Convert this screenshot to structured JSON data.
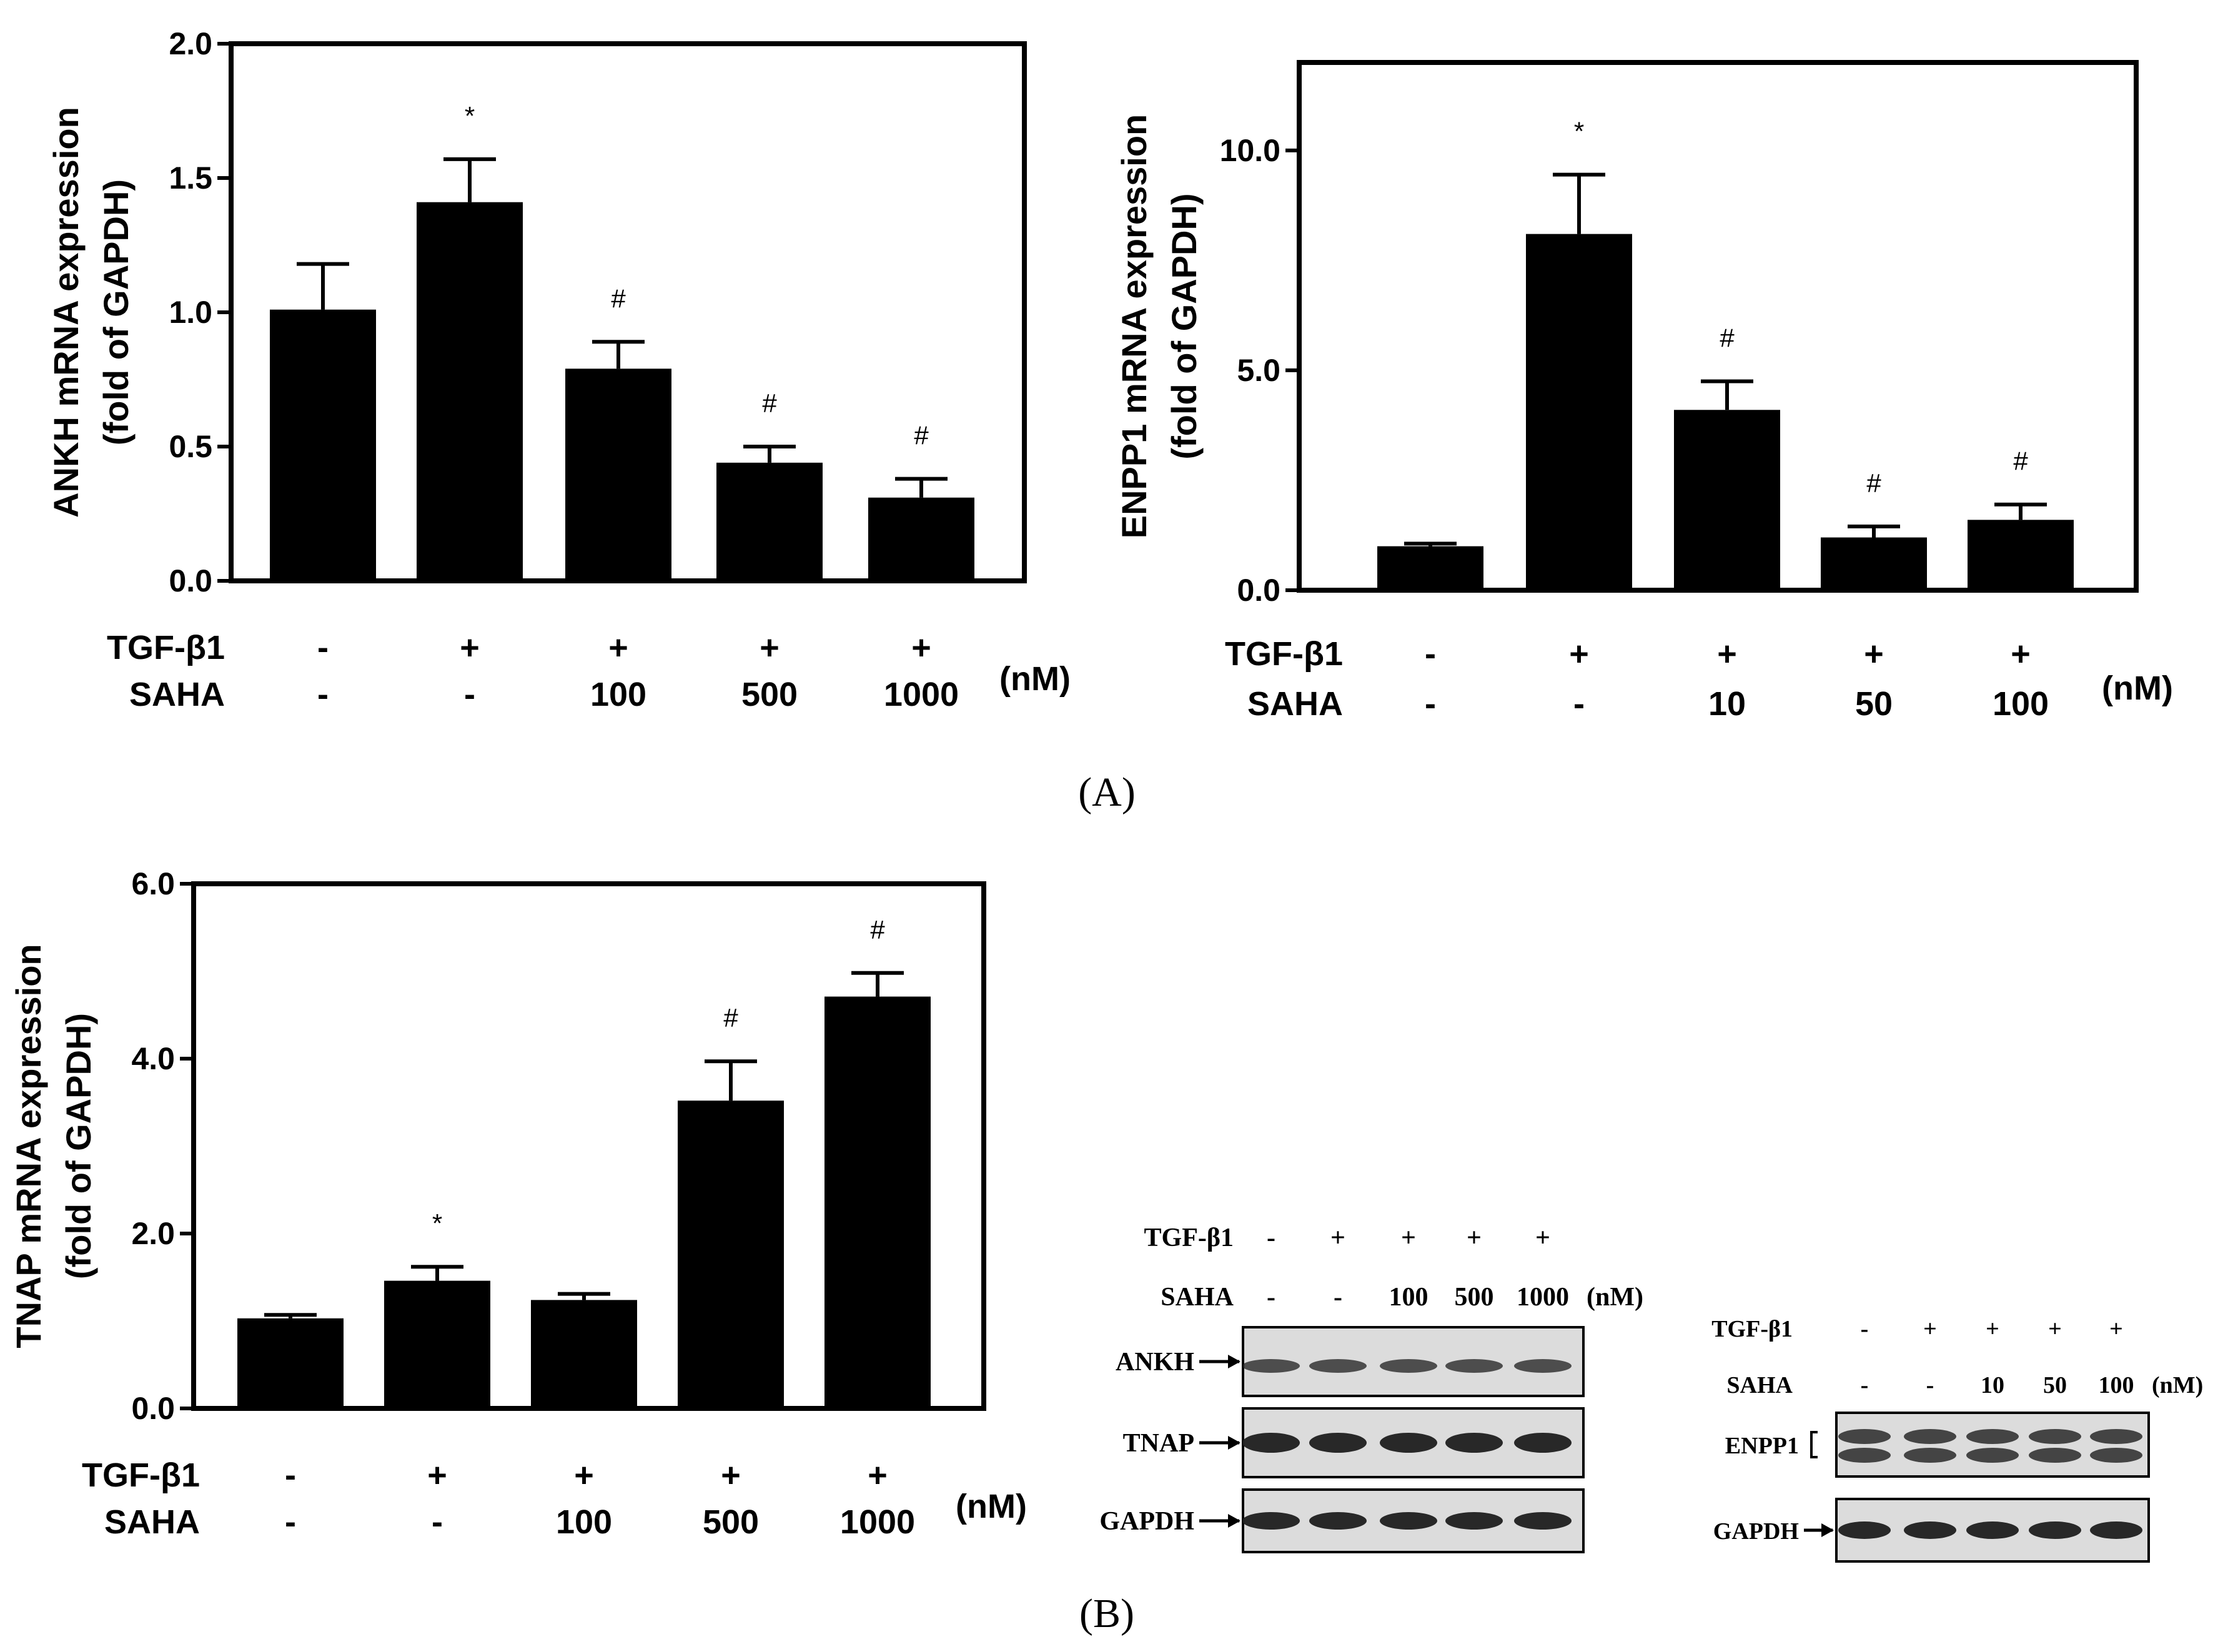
{
  "chart_data": [
    {
      "id": "ankh",
      "type": "bar",
      "ylabel_line1": "ANKH mRNA expression",
      "ylabel_line2": "(fold of GAPDH)",
      "ylim": [
        0,
        2.0
      ],
      "yticks": [
        "0.0",
        "0.5",
        "1.0",
        "1.5",
        "2.0"
      ],
      "tgf_label": "TGF-β1",
      "saha_label": "SAHA",
      "unit": "(nM)",
      "tgf_values": [
        "-",
        "+",
        "+",
        "+",
        "+"
      ],
      "saha_values": [
        "-",
        "-",
        "100",
        "500",
        "1000"
      ],
      "values": [
        1.01,
        1.41,
        0.79,
        0.44,
        0.31
      ],
      "errors": [
        0.17,
        0.16,
        0.1,
        0.06,
        0.07
      ],
      "significance": [
        "",
        "*",
        "#",
        "#",
        "#"
      ]
    },
    {
      "id": "enpp1",
      "type": "bar",
      "ylabel_line1": "ENPP1 mRNA expression",
      "ylabel_line2": "(fold of GAPDH)",
      "ylim": [
        0,
        12.0
      ],
      "yticks": [
        "0.0",
        "5.0",
        "10.0"
      ],
      "tgf_label": "TGF-β1",
      "saha_label": "SAHA",
      "unit": "(nM)",
      "tgf_values": [
        "-",
        "+",
        "+",
        "+",
        "+"
      ],
      "saha_values": [
        "-",
        "-",
        "10",
        "50",
        "100"
      ],
      "values": [
        1.0,
        8.1,
        4.1,
        1.2,
        1.6
      ],
      "errors": [
        0.06,
        1.35,
        0.65,
        0.25,
        0.35
      ],
      "significance": [
        "",
        "*",
        "#",
        "#",
        "#"
      ]
    },
    {
      "id": "tnap",
      "type": "bar",
      "ylabel_line1": "TNAP mRNA expression",
      "ylabel_line2": "(fold of GAPDH)",
      "ylim": [
        0,
        6.0
      ],
      "yticks": [
        "0.0",
        "2.0",
        "4.0",
        "6.0"
      ],
      "tgf_label": "TGF-β1",
      "saha_label": "SAHA",
      "unit": "(nM)",
      "tgf_values": [
        "-",
        "+",
        "+",
        "+",
        "+"
      ],
      "saha_values": [
        "-",
        "-",
        "100",
        "500",
        "1000"
      ],
      "values": [
        1.03,
        1.46,
        1.24,
        3.52,
        4.71
      ],
      "errors": [
        0.04,
        0.16,
        0.07,
        0.45,
        0.27
      ],
      "significance": [
        "",
        "*",
        "",
        "#",
        "#"
      ]
    }
  ],
  "blots": [
    {
      "id": "blot1",
      "tgf_label": "TGF-β1",
      "saha_label": "SAHA",
      "unit": "(nM)",
      "tgf_values": [
        "-",
        "+",
        "+",
        "+",
        "+"
      ],
      "saha_values": [
        "-",
        "-",
        "100",
        "500",
        "1000"
      ],
      "rows": [
        "ANKH",
        "TNAP",
        "GAPDH"
      ]
    },
    {
      "id": "blot2",
      "tgf_label": "TGF-β1",
      "saha_label": "SAHA",
      "unit": "(nM)",
      "tgf_values": [
        "-",
        "+",
        "+",
        "+",
        "+"
      ],
      "saha_values": [
        "-",
        "-",
        "10",
        "50",
        "100"
      ],
      "rows": [
        "ENPP1",
        "GAPDH"
      ]
    }
  ],
  "panel_labels": [
    "(A)",
    "(B)"
  ],
  "colors": {
    "bar": "#000000",
    "axis": "#000000",
    "blot_bg": "#dcdcdc",
    "band": "#1e1e1e"
  }
}
